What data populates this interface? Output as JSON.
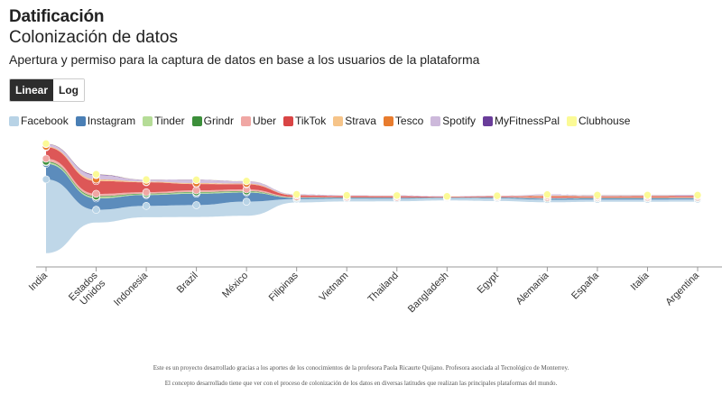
{
  "header": {
    "title": "Datificación",
    "subtitle": "Colonización de datos",
    "description": "Apertura y permiso para la captura de datos en base a los usuarios de la plataforma"
  },
  "scale_toggle": {
    "options": [
      "Linear",
      "Log"
    ],
    "selected": "Linear"
  },
  "legend": [
    {
      "name": "Facebook",
      "color": "#b8d3e6"
    },
    {
      "name": "Instagram",
      "color": "#4a7fb5"
    },
    {
      "name": "Tinder",
      "color": "#b5dc97"
    },
    {
      "name": "Grindr",
      "color": "#3c8f3a"
    },
    {
      "name": "Uber",
      "color": "#f0a7a4"
    },
    {
      "name": "TikTok",
      "color": "#d94545"
    },
    {
      "name": "Strava",
      "color": "#f6c489"
    },
    {
      "name": "Tesco",
      "color": "#e87c2e"
    },
    {
      "name": "Spotify",
      "color": "#cdb9db"
    },
    {
      "name": "MyFitnessPal",
      "color": "#6a3d9a"
    },
    {
      "name": "Clubhouse",
      "color": "#fbfa96"
    }
  ],
  "chart_data": {
    "type": "area",
    "stacked": true,
    "stack_offset": "silhouette",
    "scale": "linear",
    "categories": [
      "India",
      "Estados Unidos",
      "Indonesia",
      "Brazil",
      "México",
      "Filipinas",
      "Vietnam",
      "Thailand",
      "Bangladesh",
      "Egypt",
      "Alemania",
      "España",
      "Italia",
      "Argentina"
    ],
    "series": [
      {
        "name": "Facebook",
        "values": [
          260,
          45,
          40,
          42,
          50,
          12,
          10,
          9,
          8,
          9,
          9,
          8,
          8,
          8
        ]
      },
      {
        "name": "Instagram",
        "values": [
          55,
          40,
          38,
          40,
          32,
          4,
          3,
          3,
          2,
          3,
          4,
          4,
          4,
          4
        ]
      },
      {
        "name": "Tinder",
        "values": [
          5,
          5,
          3,
          4,
          3,
          1,
          0.5,
          0.5,
          0.3,
          0.4,
          1,
          1,
          1,
          1
        ]
      },
      {
        "name": "Grindr",
        "values": [
          3,
          3,
          2,
          2,
          2,
          0.5,
          0.3,
          0.3,
          0.2,
          0.3,
          0.5,
          0.5,
          0.5,
          0.5
        ]
      },
      {
        "name": "Uber",
        "values": [
          10,
          8,
          5,
          6,
          6,
          2,
          1,
          1,
          0.5,
          1,
          2,
          2,
          2,
          2
        ]
      },
      {
        "name": "TikTok",
        "values": [
          40,
          45,
          35,
          22,
          18,
          5,
          4,
          4,
          2,
          3,
          4,
          3,
          4,
          4
        ]
      },
      {
        "name": "Strava",
        "values": [
          2,
          5,
          2,
          3,
          2,
          0.5,
          0.3,
          0.3,
          0.2,
          0.2,
          2,
          1,
          1,
          0.5
        ]
      },
      {
        "name": "Tesco",
        "values": [
          1,
          1,
          0.5,
          0.5,
          0.5,
          0.3,
          0.2,
          0.2,
          0.1,
          0.1,
          1,
          0.5,
          0.5,
          0.3
        ]
      },
      {
        "name": "Spotify",
        "values": [
          8,
          15,
          6,
          10,
          8,
          3,
          2,
          2,
          1,
          1,
          3,
          3,
          2,
          2
        ]
      },
      {
        "name": "MyFitnessPal",
        "values": [
          1,
          2,
          0.5,
          1,
          0.5,
          0.2,
          0.1,
          0.1,
          0.1,
          0.1,
          0.5,
          0.5,
          0.5,
          0.5
        ]
      },
      {
        "name": "Clubhouse",
        "values": [
          1,
          1,
          0.5,
          0.5,
          0.5,
          0.2,
          0.1,
          0.1,
          0.1,
          0.1,
          0.2,
          0.2,
          0.2,
          0.2
        ]
      }
    ],
    "grid": false,
    "legend_position": "top-left"
  },
  "footer": {
    "line1": "Este es un proyecto desarrollado gracias a los aportes de los conocimientos de la profesora Paola Ricaurte Quijano. Profesora asociada al Tecnológico de Monterrey.",
    "line2": "El concepto desarrollado tiene que ver con el proceso de colonización de los datos en diversas latitudes que realizan las principales plataformas del mundo."
  }
}
